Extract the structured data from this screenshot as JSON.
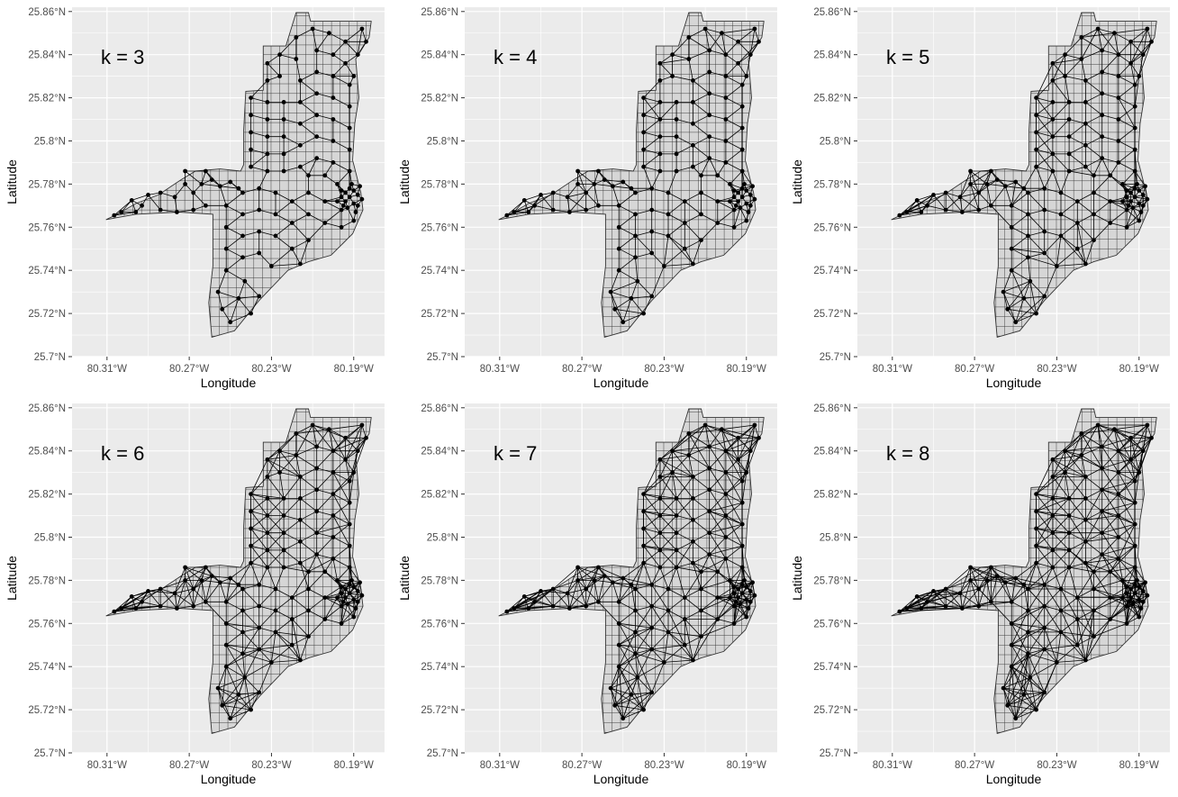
{
  "panels": [
    {
      "title": "k = 3",
      "k": 3
    },
    {
      "title": "k = 4",
      "k": 4
    },
    {
      "title": "k = 5",
      "k": 5
    },
    {
      "title": "k = 6",
      "k": 6
    },
    {
      "title": "k = 7",
      "k": 7
    },
    {
      "title": "k = 8",
      "k": 8
    }
  ],
  "axes": {
    "xlabel": "Longitude",
    "ylabel": "Latitude",
    "x_ticks": [
      "80.31°W",
      "80.27°W",
      "80.23°W",
      "80.19°W"
    ],
    "y_ticks": [
      "25.86°N",
      "25.84°N",
      "25.82°N",
      "25.8°N",
      "25.78°N",
      "25.76°N",
      "25.74°N",
      "25.72°N",
      "25.7°N"
    ],
    "xlim": [
      -80.327,
      -80.175
    ],
    "ylim": [
      25.7,
      25.862
    ]
  },
  "colors": {
    "panel_bg": "#ebebeb",
    "grid": "#ffffff",
    "polygon_fill": "#d6d6d6",
    "polygon_stroke": "#333333",
    "edge": "#000000",
    "node": "#000000"
  },
  "region_outline": [
    [
      -80.3105,
      25.7635
    ],
    [
      -80.305,
      25.766
    ],
    [
      -80.296,
      25.771
    ],
    [
      -80.285,
      25.775
    ],
    [
      -80.274,
      25.782
    ],
    [
      -80.267,
      25.786
    ],
    [
      -80.255,
      25.787
    ],
    [
      -80.245,
      25.786
    ],
    [
      -80.2435,
      25.789
    ],
    [
      -80.2435,
      25.805
    ],
    [
      -80.2425,
      25.823
    ],
    [
      -80.234,
      25.8235
    ],
    [
      -80.234,
      25.844
    ],
    [
      -80.223,
      25.844
    ],
    [
      -80.218,
      25.8595
    ],
    [
      -80.212,
      25.8595
    ],
    [
      -80.211,
      25.8555
    ],
    [
      -80.1815,
      25.8555
    ],
    [
      -80.1825,
      25.848
    ],
    [
      -80.189,
      25.838
    ],
    [
      -80.1875,
      25.82
    ],
    [
      -80.1895,
      25.808
    ],
    [
      -80.1905,
      25.791
    ],
    [
      -80.1865,
      25.776
    ],
    [
      -80.1855,
      25.768
    ],
    [
      -80.1905,
      25.757
    ],
    [
      -80.201,
      25.747
    ],
    [
      -80.212,
      25.744
    ],
    [
      -80.222,
      25.74
    ],
    [
      -80.236,
      25.726
    ],
    [
      -80.248,
      25.712
    ],
    [
      -80.259,
      25.709
    ],
    [
      -80.2605,
      25.725
    ],
    [
      -80.2585,
      25.742
    ],
    [
      -80.2585,
      25.766
    ],
    [
      -80.275,
      25.767
    ],
    [
      -80.296,
      25.766
    ],
    [
      -80.3105,
      25.7635
    ]
  ],
  "nodes": [
    [
      -80.3065,
      25.7655
    ],
    [
      -80.303,
      25.767
    ],
    [
      -80.298,
      25.7725
    ],
    [
      -80.293,
      25.77
    ],
    [
      -80.29,
      25.775
    ],
    [
      -80.284,
      25.776
    ],
    [
      -80.277,
      25.774
    ],
    [
      -80.272,
      25.78
    ],
    [
      -80.268,
      25.776
    ],
    [
      -80.264,
      25.78
    ],
    [
      -80.259,
      25.782
    ],
    [
      -80.255,
      25.779
    ],
    [
      -80.25,
      25.781
    ],
    [
      -80.246,
      25.778
    ],
    [
      -80.296,
      25.767
    ],
    [
      -80.284,
      25.768
    ],
    [
      -80.276,
      25.767
    ],
    [
      -80.268,
      25.768
    ],
    [
      -80.262,
      25.77
    ],
    [
      -80.272,
      25.786
    ],
    [
      -80.262,
      25.786
    ],
    [
      -80.252,
      25.77
    ],
    [
      -80.252,
      25.76
    ],
    [
      -80.252,
      25.75
    ],
    [
      -80.252,
      25.74
    ],
    [
      -80.256,
      25.73
    ],
    [
      -80.254,
      25.722
    ],
    [
      -80.25,
      25.716
    ],
    [
      -80.246,
      25.727
    ],
    [
      -80.243,
      25.735
    ],
    [
      -80.24,
      25.72
    ],
    [
      -80.236,
      25.728
    ],
    [
      -80.244,
      25.746
    ],
    [
      -80.244,
      25.756
    ],
    [
      -80.244,
      25.766
    ],
    [
      -80.244,
      25.776
    ],
    [
      -80.236,
      25.778
    ],
    [
      -80.236,
      25.768
    ],
    [
      -80.236,
      25.758
    ],
    [
      -80.236,
      25.748
    ],
    [
      -80.23,
      25.742
    ],
    [
      -80.228,
      25.756
    ],
    [
      -80.228,
      25.766
    ],
    [
      -80.228,
      25.776
    ],
    [
      -80.22,
      25.75
    ],
    [
      -80.22,
      25.762
    ],
    [
      -80.22,
      25.772
    ],
    [
      -80.212,
      25.754
    ],
    [
      -80.212,
      25.766
    ],
    [
      -80.212,
      25.776
    ],
    [
      -80.204,
      25.762
    ],
    [
      -80.204,
      25.772
    ],
    [
      -80.196,
      25.76
    ],
    [
      -80.196,
      25.768
    ],
    [
      -80.19,
      25.763
    ],
    [
      -80.216,
      25.743
    ],
    [
      -80.24,
      25.788
    ],
    [
      -80.24,
      25.796
    ],
    [
      -80.24,
      25.804
    ],
    [
      -80.24,
      25.812
    ],
    [
      -80.24,
      25.82
    ],
    [
      -80.232,
      25.786
    ],
    [
      -80.232,
      25.794
    ],
    [
      -80.232,
      25.802
    ],
    [
      -80.232,
      25.81
    ],
    [
      -80.232,
      25.818
    ],
    [
      -80.232,
      25.828
    ],
    [
      -80.232,
      25.836
    ],
    [
      -80.226,
      25.83
    ],
    [
      -80.226,
      25.84
    ],
    [
      -80.224,
      25.786
    ],
    [
      -80.224,
      25.794
    ],
    [
      -80.224,
      25.802
    ],
    [
      -80.224,
      25.81
    ],
    [
      -80.224,
      25.818
    ],
    [
      -80.218,
      25.848
    ],
    [
      -80.218,
      25.838
    ],
    [
      -80.216,
      25.828
    ],
    [
      -80.216,
      25.818
    ],
    [
      -80.216,
      25.808
    ],
    [
      -80.216,
      25.798
    ],
    [
      -80.216,
      25.788
    ],
    [
      -80.21,
      25.852
    ],
    [
      -80.208,
      25.842
    ],
    [
      -80.208,
      25.832
    ],
    [
      -80.208,
      25.822
    ],
    [
      -80.208,
      25.812
    ],
    [
      -80.208,
      25.802
    ],
    [
      -80.208,
      25.792
    ],
    [
      -80.202,
      25.85
    ],
    [
      -80.2,
      25.84
    ],
    [
      -80.2,
      25.83
    ],
    [
      -80.2,
      25.82
    ],
    [
      -80.2,
      25.81
    ],
    [
      -80.2,
      25.8
    ],
    [
      -80.2,
      25.79
    ],
    [
      -80.194,
      25.846
    ],
    [
      -80.194,
      25.836
    ],
    [
      -80.192,
      25.826
    ],
    [
      -80.192,
      25.816
    ],
    [
      -80.192,
      25.806
    ],
    [
      -80.192,
      25.796
    ],
    [
      -80.192,
      25.786
    ],
    [
      -80.186,
      25.852
    ],
    [
      -80.184,
      25.846
    ],
    [
      -80.188,
      25.84
    ],
    [
      -80.19,
      25.83
    ],
    [
      -80.212,
      25.784
    ],
    [
      -80.204,
      25.784
    ],
    [
      -80.198,
      25.78
    ],
    [
      -80.194,
      25.776
    ],
    [
      -80.192,
      25.774
    ],
    [
      -80.19,
      25.777
    ],
    [
      -80.194,
      25.772
    ],
    [
      -80.19,
      25.771
    ],
    [
      -80.188,
      25.775
    ],
    [
      -80.192,
      25.778
    ],
    [
      -80.196,
      25.774
    ],
    [
      -80.188,
      25.77
    ],
    [
      -80.193,
      25.769
    ],
    [
      -80.189,
      25.767
    ],
    [
      -80.196,
      25.777
    ],
    [
      -80.198,
      25.772
    ],
    [
      -80.187,
      25.779
    ],
    [
      -80.191,
      25.78
    ],
    [
      -80.195,
      25.77
    ],
    [
      -80.186,
      25.773
    ]
  ]
}
